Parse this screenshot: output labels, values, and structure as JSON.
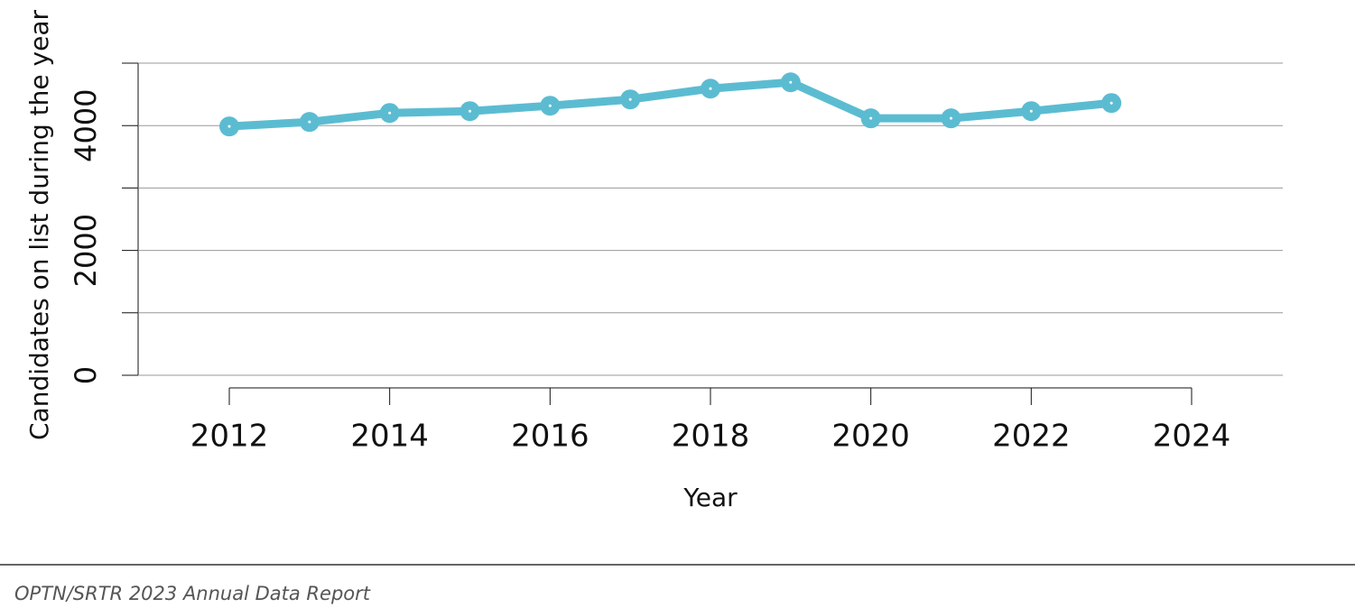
{
  "chart_data": {
    "type": "line",
    "y_label": "Candidates on list during the year",
    "x_label": "Year",
    "footer": "OPTN/SRTR 2023 Annual Data Report",
    "x": [
      2012,
      2013,
      2014,
      2015,
      2016,
      2017,
      2018,
      2019,
      2020,
      2021,
      2022,
      2023
    ],
    "series": [
      {
        "color": "#5bbcd1",
        "values": [
          3986,
          4058,
          4202,
          4231,
          4318,
          4419,
          4592,
          4693,
          4116,
          4116,
          4231,
          4361
        ]
      }
    ],
    "xlim": [
      2012,
      2024
    ],
    "xticks": [
      2012,
      2014,
      2016,
      2018,
      2020,
      2022,
      2024
    ],
    "ylim": [
      0,
      5000
    ],
    "yticks": [
      0,
      2000,
      4000
    ],
    "yminor": [
      1000,
      3000,
      5000
    ],
    "grid": true
  }
}
